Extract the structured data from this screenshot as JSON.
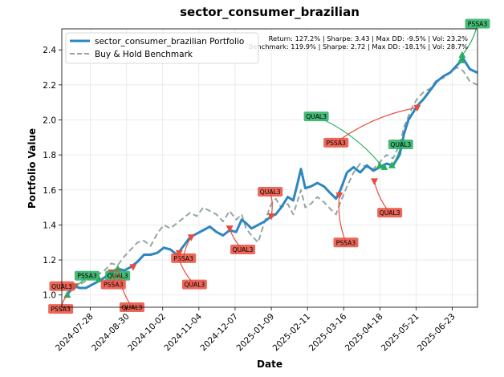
{
  "chart_data": {
    "type": "line",
    "title": "sector_consumer_brazilian",
    "xlabel": "Date",
    "ylabel": "Portfolio Value",
    "xlim": [
      "2024-07-02",
      "2025-07-16"
    ],
    "ylim": [
      0.93,
      2.52
    ],
    "grid": true,
    "legend_position": "upper-left",
    "x_ticks": [
      "2024-07-28",
      "2024-08-30",
      "2024-10-02",
      "2024-11-04",
      "2024-12-07",
      "2025-01-09",
      "2025-02-11",
      "2025-03-16",
      "2025-04-18",
      "2025-05-21",
      "2025-06-23"
    ],
    "y_ticks": [
      "1.0",
      "1.2",
      "1.4",
      "1.6",
      "1.8",
      "2.0",
      "2.2",
      "2.4"
    ],
    "stats_lines": [
      "Return: 127.2% | Sharpe: 3.43 | Max DD: -9.5% | Vol: 23.2%",
      "Benchmark: 119.9% | Sharpe: 2.72 | Max DD: -18.1% | Vol: 28.7%"
    ],
    "series": [
      {
        "name": "sector_consumer_brazilian Portfolio",
        "color": "#2E86C1",
        "style": "solid",
        "points": [
          [
            "2024-07-07",
            1.0
          ],
          [
            "2024-07-10",
            1.03
          ],
          [
            "2024-07-14",
            1.05
          ],
          [
            "2024-07-18",
            1.04
          ],
          [
            "2024-07-24",
            1.04
          ],
          [
            "2024-07-30",
            1.06
          ],
          [
            "2024-08-05",
            1.08
          ],
          [
            "2024-08-10",
            1.1
          ],
          [
            "2024-08-16",
            1.13
          ],
          [
            "2024-08-22",
            1.15
          ],
          [
            "2024-08-28",
            1.14
          ],
          [
            "2024-09-03",
            1.16
          ],
          [
            "2024-09-09",
            1.19
          ],
          [
            "2024-09-15",
            1.23
          ],
          [
            "2024-09-21",
            1.23
          ],
          [
            "2024-09-27",
            1.24
          ],
          [
            "2024-10-03",
            1.27
          ],
          [
            "2024-10-09",
            1.26
          ],
          [
            "2024-10-15",
            1.23
          ],
          [
            "2024-10-21",
            1.28
          ],
          [
            "2024-10-27",
            1.33
          ],
          [
            "2024-11-02",
            1.35
          ],
          [
            "2024-11-08",
            1.37
          ],
          [
            "2024-11-14",
            1.39
          ],
          [
            "2024-11-20",
            1.36
          ],
          [
            "2024-11-26",
            1.34
          ],
          [
            "2024-12-02",
            1.37
          ],
          [
            "2024-12-08",
            1.36
          ],
          [
            "2024-12-13",
            1.43
          ],
          [
            "2024-12-17",
            1.41
          ],
          [
            "2024-12-22",
            1.38
          ],
          [
            "2024-12-28",
            1.4
          ],
          [
            "2025-01-03",
            1.42
          ],
          [
            "2025-01-09",
            1.45
          ],
          [
            "2025-01-13",
            1.46
          ],
          [
            "2025-01-18",
            1.5
          ],
          [
            "2025-01-24",
            1.56
          ],
          [
            "2025-01-29",
            1.54
          ],
          [
            "2025-02-02",
            1.64
          ],
          [
            "2025-02-05",
            1.72
          ],
          [
            "2025-02-09",
            1.61
          ],
          [
            "2025-02-14",
            1.62
          ],
          [
            "2025-02-20",
            1.64
          ],
          [
            "2025-02-26",
            1.62
          ],
          [
            "2025-03-04",
            1.58
          ],
          [
            "2025-03-09",
            1.55
          ],
          [
            "2025-03-13",
            1.6
          ],
          [
            "2025-03-19",
            1.7
          ],
          [
            "2025-03-25",
            1.73
          ],
          [
            "2025-03-31",
            1.7
          ],
          [
            "2025-04-06",
            1.74
          ],
          [
            "2025-04-12",
            1.71
          ],
          [
            "2025-04-18",
            1.73
          ],
          [
            "2025-04-24",
            1.75
          ],
          [
            "2025-04-30",
            1.74
          ],
          [
            "2025-05-06",
            1.8
          ],
          [
            "2025-05-10",
            1.92
          ],
          [
            "2025-05-14",
            2.0
          ],
          [
            "2025-05-18",
            2.04
          ],
          [
            "2025-05-22",
            2.08
          ],
          [
            "2025-05-28",
            2.12
          ],
          [
            "2025-06-03",
            2.17
          ],
          [
            "2025-06-09",
            2.22
          ],
          [
            "2025-06-15",
            2.25
          ],
          [
            "2025-06-21",
            2.27
          ],
          [
            "2025-06-27",
            2.31
          ],
          [
            "2025-07-03",
            2.35
          ],
          [
            "2025-07-09",
            2.29
          ],
          [
            "2025-07-16",
            2.27
          ]
        ]
      },
      {
        "name": "Buy & Hold Benchmark",
        "color": "#95A5A6",
        "style": "dashed",
        "points": [
          [
            "2024-07-07",
            1.0
          ],
          [
            "2024-07-10",
            1.02
          ],
          [
            "2024-07-14",
            1.04
          ],
          [
            "2024-07-18",
            1.06
          ],
          [
            "2024-07-24",
            1.08
          ],
          [
            "2024-07-30",
            1.1
          ],
          [
            "2024-08-05",
            1.12
          ],
          [
            "2024-08-10",
            1.14
          ],
          [
            "2024-08-16",
            1.18
          ],
          [
            "2024-08-22",
            1.17
          ],
          [
            "2024-08-28",
            1.22
          ],
          [
            "2024-09-03",
            1.26
          ],
          [
            "2024-09-09",
            1.3
          ],
          [
            "2024-09-15",
            1.31
          ],
          [
            "2024-09-21",
            1.28
          ],
          [
            "2024-09-27",
            1.35
          ],
          [
            "2024-10-03",
            1.4
          ],
          [
            "2024-10-09",
            1.38
          ],
          [
            "2024-10-15",
            1.41
          ],
          [
            "2024-10-21",
            1.44
          ],
          [
            "2024-10-27",
            1.47
          ],
          [
            "2024-11-02",
            1.45
          ],
          [
            "2024-11-08",
            1.5
          ],
          [
            "2024-11-14",
            1.48
          ],
          [
            "2024-11-20",
            1.46
          ],
          [
            "2024-11-26",
            1.42
          ],
          [
            "2024-12-02",
            1.48
          ],
          [
            "2024-12-08",
            1.43
          ],
          [
            "2024-12-13",
            1.46
          ],
          [
            "2024-12-17",
            1.38
          ],
          [
            "2024-12-22",
            1.34
          ],
          [
            "2024-12-28",
            1.3
          ],
          [
            "2025-01-03",
            1.42
          ],
          [
            "2025-01-09",
            1.52
          ],
          [
            "2025-01-13",
            1.55
          ],
          [
            "2025-01-18",
            1.5
          ],
          [
            "2025-01-24",
            1.52
          ],
          [
            "2025-01-29",
            1.46
          ],
          [
            "2025-02-02",
            1.54
          ],
          [
            "2025-02-05",
            1.6
          ],
          [
            "2025-02-09",
            1.5
          ],
          [
            "2025-02-14",
            1.52
          ],
          [
            "2025-02-20",
            1.56
          ],
          [
            "2025-02-26",
            1.53
          ],
          [
            "2025-03-04",
            1.49
          ],
          [
            "2025-03-09",
            1.46
          ],
          [
            "2025-03-13",
            1.53
          ],
          [
            "2025-03-19",
            1.62
          ],
          [
            "2025-03-25",
            1.7
          ],
          [
            "2025-03-31",
            1.75
          ],
          [
            "2025-04-06",
            1.73
          ],
          [
            "2025-04-12",
            1.72
          ],
          [
            "2025-04-18",
            1.76
          ],
          [
            "2025-04-24",
            1.8
          ],
          [
            "2025-04-30",
            1.78
          ],
          [
            "2025-05-06",
            1.86
          ],
          [
            "2025-05-10",
            1.96
          ],
          [
            "2025-05-14",
            2.02
          ],
          [
            "2025-05-18",
            2.08
          ],
          [
            "2025-05-22",
            2.12
          ],
          [
            "2025-05-28",
            2.16
          ],
          [
            "2025-06-03",
            2.18
          ],
          [
            "2025-06-09",
            2.23
          ],
          [
            "2025-06-15",
            2.24
          ],
          [
            "2025-06-21",
            2.27
          ],
          [
            "2025-06-27",
            2.3
          ],
          [
            "2025-07-03",
            2.28
          ],
          [
            "2025-07-09",
            2.22
          ],
          [
            "2025-07-16",
            2.2
          ]
        ]
      }
    ],
    "trades": [
      {
        "type": "buy",
        "label": "PSSA3",
        "x": "2024-07-07",
        "y": 1.0
      },
      {
        "type": "sell",
        "label": "QUAL3",
        "x": "2024-07-14",
        "y": 1.05
      },
      {
        "type": "buy",
        "label": "QUAL3",
        "x": "2024-08-05",
        "y": 1.09
      },
      {
        "type": "sell",
        "label": "PSSA3",
        "x": "2024-08-16",
        "y": 1.13
      },
      {
        "type": "buy",
        "label": "PSSA3",
        "x": "2024-08-22",
        "y": 1.15
      },
      {
        "type": "sell",
        "label": "QUAL3",
        "x": "2024-09-05",
        "y": 1.16
      },
      {
        "type": "sell",
        "label": "QUAL3",
        "x": "2024-10-17",
        "y": 1.24
      },
      {
        "type": "sell",
        "label": "PSSA3",
        "x": "2024-10-28",
        "y": 1.33
      },
      {
        "type": "sell",
        "label": "QUAL3",
        "x": "2024-12-02",
        "y": 1.38
      },
      {
        "type": "sell",
        "label": "QUAL3",
        "x": "2025-01-09",
        "y": 1.45
      },
      {
        "type": "sell",
        "label": "PSSA3",
        "x": "2025-03-12",
        "y": 1.57
      },
      {
        "type": "sell",
        "label": "QUAL3",
        "x": "2025-04-13",
        "y": 1.65
      },
      {
        "type": "buy",
        "label": "PSSA3",
        "x": "2025-04-18",
        "y": 1.74
      },
      {
        "type": "buy",
        "label": "QUAL3",
        "x": "2025-04-29",
        "y": 1.74
      },
      {
        "type": "buy",
        "label": "QUAL3",
        "x": "2025-04-22",
        "y": 1.73
      },
      {
        "type": "sell",
        "label": "PSSA3",
        "x": "2025-05-22",
        "y": 2.07
      },
      {
        "type": "buy",
        "label": "PSSA3",
        "x": "2025-07-01",
        "y": 2.34
      },
      {
        "type": "buy",
        "label": "PSSA3",
        "x": "2025-07-02",
        "y": 2.37
      }
    ],
    "annotations": [
      {
        "label": "PSSA3",
        "type": "sell",
        "target": "2024-07-07|1.00",
        "label_at": "2024-07-01|0.92"
      },
      {
        "label": "QUAL3",
        "type": "sell",
        "target": "2024-07-14|1.05",
        "label_at": "2024-07-02|1.05"
      },
      {
        "label": "PSSA3",
        "type": "buy",
        "target": "2024-07-14|1.05",
        "label_at": "2024-07-25|1.11"
      },
      {
        "label": "QUAL3",
        "type": "buy",
        "target": "2024-08-16|1.13",
        "label_at": "2024-08-22|1.11"
      },
      {
        "label": "PSSA3",
        "type": "sell",
        "target": "2024-08-22|1.15",
        "label_at": "2024-08-18|1.06"
      },
      {
        "label": "QUAL3",
        "type": "sell",
        "target": "2024-08-22|1.15",
        "label_at": "2024-09-04|0.93"
      },
      {
        "label": "PSSA3",
        "type": "sell",
        "target": "2024-10-28|1.33",
        "label_at": "2024-10-21|1.21"
      },
      {
        "label": "QUAL3",
        "type": "sell",
        "target": "2024-10-16|1.22",
        "label_at": "2024-10-31|1.06"
      },
      {
        "label": "QUAL3",
        "type": "sell",
        "target": "2024-12-02|1.38",
        "label_at": "2024-12-14|1.26"
      },
      {
        "label": "QUAL3",
        "type": "sell",
        "target": "2025-01-09|1.45",
        "label_at": "2025-01-08|1.59"
      },
      {
        "label": "QUAL3",
        "type": "buy",
        "target": "2025-04-18|1.75",
        "label_at": "2025-02-19|2.02"
      },
      {
        "label": "PSSA3",
        "type": "sell",
        "target": "2025-05-22|2.07",
        "label_at": "2025-03-09|1.87"
      },
      {
        "label": "PSSA3",
        "type": "sell",
        "target": "2025-03-12|1.57",
        "label_at": "2025-03-18|1.30"
      },
      {
        "label": "QUAL3",
        "type": "sell",
        "target": "2025-04-13|1.65",
        "label_at": "2025-04-27|1.47"
      },
      {
        "label": "QUAL3",
        "type": "buy",
        "target": "2025-04-29|1.74",
        "label_at": "2025-05-07|1.86"
      },
      {
        "label": "PSSA3",
        "type": "buy",
        "target": "2025-07-02|2.37",
        "label_at": "2025-07-16|2.55"
      }
    ]
  }
}
